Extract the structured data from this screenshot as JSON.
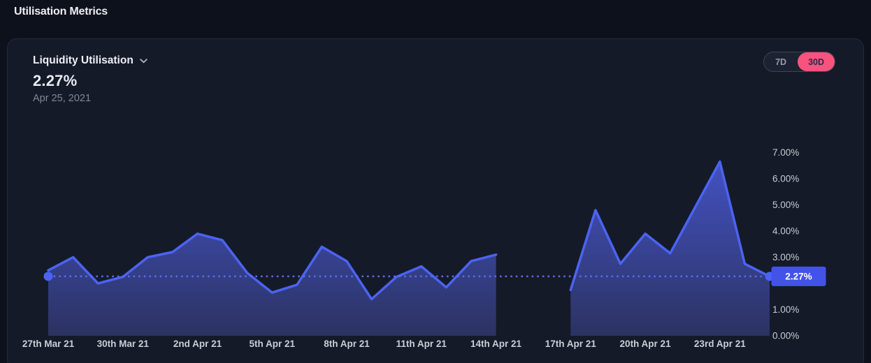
{
  "header": {
    "title": "Utilisation Metrics"
  },
  "card": {
    "metric_label": "Liquidity Utilisation",
    "current_value": "2.27%",
    "current_date": "Apr 25, 2021",
    "range_buttons": [
      {
        "label": "7D",
        "active": false
      },
      {
        "label": "30D",
        "active": true
      }
    ]
  },
  "colors": {
    "page_bg": "#0d111c",
    "card_bg": "#151a28",
    "line": "#4b63f2",
    "area_top": "#4a59d8",
    "area_bottom": "#2c3464",
    "reference_line": "#5a6cf5",
    "badge_bg": "#4353e8",
    "toggle_active_bg": "#f8537f",
    "axis_text": "#c7cbd4"
  },
  "chart_data": {
    "type": "area",
    "title": "Liquidity Utilisation (30D)",
    "x": [
      "Mar 27",
      "Mar 28",
      "Mar 29",
      "Mar 30",
      "Mar 31",
      "Apr 1",
      "Apr 2",
      "Apr 3",
      "Apr 4",
      "Apr 5",
      "Apr 6",
      "Apr 7",
      "Apr 8",
      "Apr 9",
      "Apr 10",
      "Apr 11",
      "Apr 12",
      "Apr 13",
      "Apr 14",
      "Apr 15",
      "Apr 16",
      "Apr 17",
      "Apr 18",
      "Apr 19",
      "Apr 20",
      "Apr 21",
      "Apr 22",
      "Apr 23",
      "Apr 24",
      "Apr 25"
    ],
    "series": [
      {
        "name": "Liquidity Utilisation %",
        "values": [
          2.5,
          3.0,
          2.0,
          2.25,
          3.0,
          3.2,
          3.9,
          3.65,
          2.4,
          1.65,
          1.95,
          3.4,
          2.85,
          1.4,
          2.25,
          2.65,
          1.85,
          2.85,
          3.1,
          null,
          null,
          1.75,
          4.8,
          2.75,
          3.9,
          3.15,
          4.9,
          6.65,
          2.75,
          2.27
        ]
      }
    ],
    "x_tick_indices": [
      0,
      3,
      6,
      9,
      12,
      15,
      18,
      21,
      24,
      27
    ],
    "x_tick_labels": [
      "27th Mar 21",
      "30th Mar 21",
      "2nd Apr 21",
      "5th Apr 21",
      "8th Apr 21",
      "11th Apr 21",
      "14th Apr 21",
      "17th Apr 21",
      "20th Apr 21",
      "23rd Apr 21"
    ],
    "y_ticks": [
      {
        "value": 7,
        "label": "7.00%"
      },
      {
        "value": 6,
        "label": "6.00%"
      },
      {
        "value": 5,
        "label": "5.00%"
      },
      {
        "value": 4,
        "label": "4.00%"
      },
      {
        "value": 3,
        "label": "3.00%"
      },
      {
        "value": 1,
        "label": "1.00%"
      },
      {
        "value": 0,
        "label": "0.00%"
      }
    ],
    "ylim": [
      0,
      7
    ],
    "grid": false,
    "legend": "none",
    "reference": {
      "value": 2.27,
      "label": "2.27%"
    }
  }
}
